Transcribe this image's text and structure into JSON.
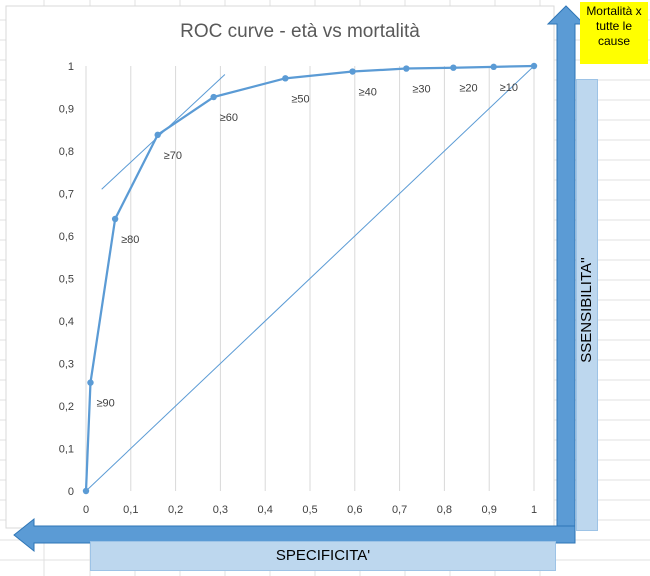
{
  "annotations": {
    "note": "Mortalità x tutte le cause",
    "y_arrow_label": "SSENSIBILITA''",
    "x_arrow_label": "SPECIFICITA'"
  },
  "colors": {
    "series": "#5b9bd5",
    "arrow": "#5b9bd5",
    "arrow_border": "#2e75b6",
    "label_box": "#bdd7ee",
    "note_box": "#ffff00",
    "gridline": "#d9d9d9"
  },
  "chart_data": {
    "type": "line",
    "title": "ROC curve - età vs mortalità",
    "xlabel": "",
    "ylabel": "",
    "xlim": [
      0,
      1
    ],
    "ylim": [
      0,
      1
    ],
    "x_ticks": [
      "0",
      "0,1",
      "0,2",
      "0,3",
      "0,4",
      "0,5",
      "0,6",
      "0,7",
      "0,8",
      "0,9",
      "1"
    ],
    "y_ticks": [
      "0",
      "0,1",
      "0,2",
      "0,3",
      "0,4",
      "0,5",
      "0,6",
      "0,7",
      "0,8",
      "0,9",
      "1"
    ],
    "grid": "vertical",
    "legend": "none",
    "series": [
      {
        "x": [
          0,
          0.01,
          0.065,
          0.16,
          0.285,
          0.445,
          0.595,
          0.715,
          0.82,
          0.91,
          1
        ],
        "y": [
          0,
          0.255,
          0.64,
          0.838,
          0.927,
          0.971,
          0.987,
          0.994,
          0.996,
          0.998,
          1
        ],
        "point_labels": [
          "",
          "≥90",
          "≥80",
          "≥70",
          "≥60",
          "≥50",
          "≥40",
          "≥30",
          "≥20",
          "≥10",
          ""
        ]
      }
    ],
    "reference_lines": [
      {
        "type": "diagonal",
        "from": [
          0,
          0
        ],
        "to": [
          1,
          1
        ]
      },
      {
        "type": "tangent",
        "from": [
          0.035,
          0.71
        ],
        "to": [
          0.31,
          0.98
        ]
      }
    ]
  }
}
